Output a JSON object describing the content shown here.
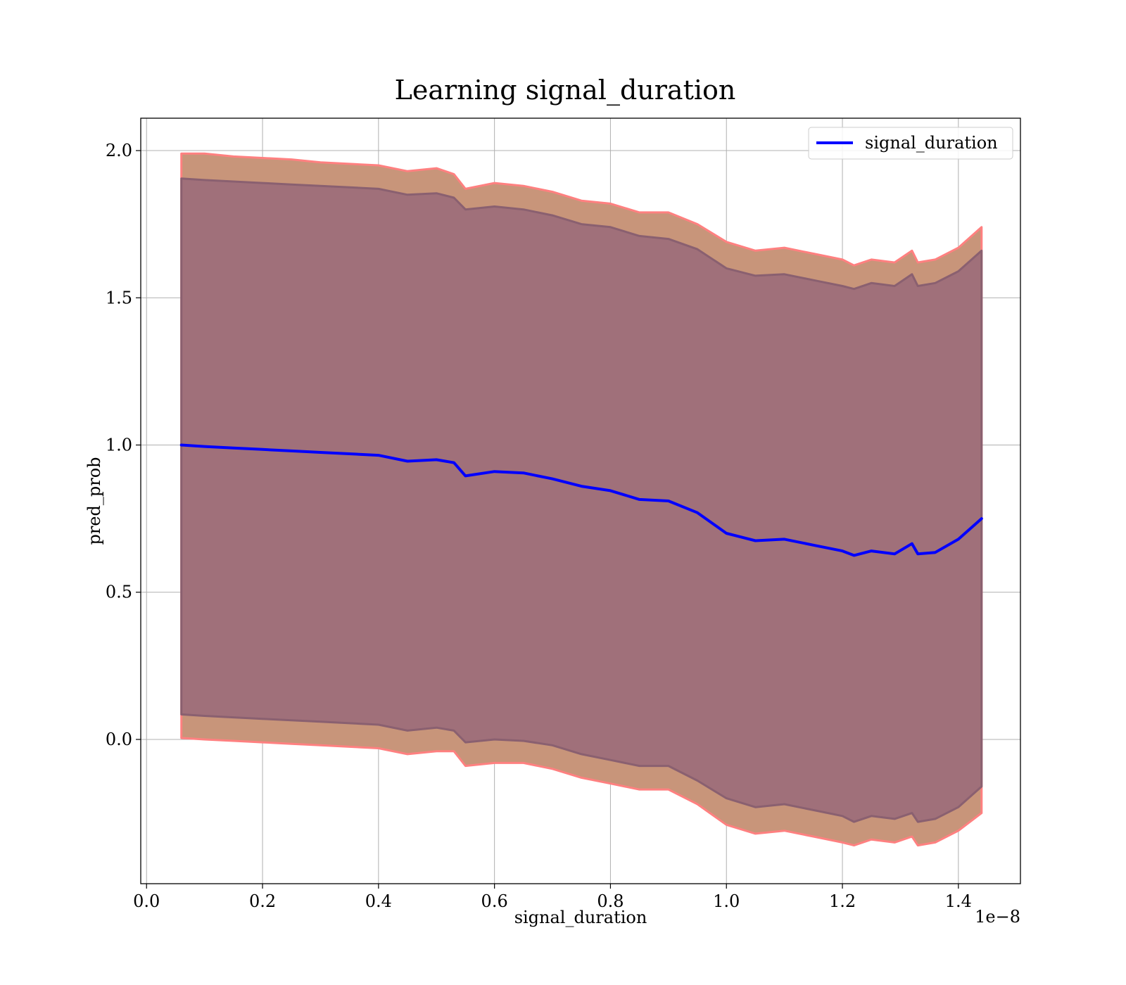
{
  "chart_data": {
    "type": "line",
    "title": "Learning signal_duration",
    "xlabel": "signal_duration",
    "ylabel": "pred_prob",
    "x_offset_text": "1e−8",
    "xlim": [
      -0.01,
      1.507
    ],
    "ylim": [
      -0.49,
      2.11
    ],
    "x_ticks": [
      0.0,
      0.2,
      0.4,
      0.6,
      0.8,
      1.0,
      1.2,
      1.4
    ],
    "x_tick_labels": [
      "0.0",
      "0.2",
      "0.4",
      "0.6",
      "0.8",
      "1.0",
      "1.2",
      "1.4"
    ],
    "y_ticks": [
      0.0,
      0.5,
      1.0,
      1.5,
      2.0
    ],
    "y_tick_labels": [
      "0.0",
      "0.5",
      "1.0",
      "1.5",
      "2.0"
    ],
    "grid": true,
    "legend_position": "top-right",
    "x": [
      0.06,
      0.1,
      0.15,
      0.2,
      0.25,
      0.3,
      0.35,
      0.4,
      0.45,
      0.5,
      0.53,
      0.55,
      0.6,
      0.65,
      0.7,
      0.75,
      0.8,
      0.85,
      0.9,
      0.95,
      1.0,
      1.05,
      1.1,
      1.15,
      1.2,
      1.22,
      1.25,
      1.29,
      1.32,
      1.33,
      1.36,
      1.4,
      1.44
    ],
    "series": [
      {
        "name": "signal_duration",
        "color": "#0000ff",
        "values": [
          1.0,
          0.995,
          0.99,
          0.985,
          0.98,
          0.975,
          0.97,
          0.965,
          0.945,
          0.95,
          0.94,
          0.895,
          0.91,
          0.905,
          0.885,
          0.86,
          0.845,
          0.815,
          0.81,
          0.77,
          0.7,
          0.675,
          0.68,
          0.66,
          0.64,
          0.625,
          0.64,
          0.63,
          0.665,
          0.63,
          0.635,
          0.68,
          0.75
        ]
      }
    ],
    "bands": [
      {
        "color": "#c8957a",
        "edge_color": "#ff8080",
        "upper": [
          1.99,
          1.99,
          1.98,
          1.975,
          1.97,
          1.96,
          1.955,
          1.95,
          1.93,
          1.94,
          1.92,
          1.87,
          1.89,
          1.88,
          1.86,
          1.83,
          1.82,
          1.79,
          1.79,
          1.75,
          1.69,
          1.66,
          1.67,
          1.65,
          1.63,
          1.61,
          1.63,
          1.62,
          1.66,
          1.62,
          1.63,
          1.67,
          1.74
        ],
        "lower": [
          0.005,
          0.0,
          -0.005,
          -0.01,
          -0.015,
          -0.02,
          -0.025,
          -0.03,
          -0.05,
          -0.04,
          -0.04,
          -0.09,
          -0.08,
          -0.08,
          -0.1,
          -0.13,
          -0.15,
          -0.17,
          -0.17,
          -0.22,
          -0.29,
          -0.32,
          -0.31,
          -0.33,
          -0.35,
          -0.36,
          -0.34,
          -0.35,
          -0.33,
          -0.36,
          -0.35,
          -0.31,
          -0.25
        ]
      },
      {
        "color": "#a0707a",
        "edge_color": "#8a6070",
        "upper": [
          1.905,
          1.9,
          1.895,
          1.89,
          1.885,
          1.88,
          1.875,
          1.87,
          1.85,
          1.855,
          1.84,
          1.8,
          1.81,
          1.8,
          1.78,
          1.75,
          1.74,
          1.71,
          1.7,
          1.665,
          1.6,
          1.575,
          1.58,
          1.56,
          1.54,
          1.53,
          1.55,
          1.54,
          1.58,
          1.54,
          1.55,
          1.59,
          1.66
        ],
        "lower": [
          0.085,
          0.08,
          0.075,
          0.07,
          0.065,
          0.06,
          0.055,
          0.05,
          0.03,
          0.04,
          0.03,
          -0.01,
          0.0,
          -0.005,
          -0.02,
          -0.05,
          -0.07,
          -0.09,
          -0.09,
          -0.14,
          -0.2,
          -0.23,
          -0.22,
          -0.24,
          -0.26,
          -0.28,
          -0.26,
          -0.27,
          -0.25,
          -0.28,
          -0.27,
          -0.23,
          -0.16
        ]
      }
    ]
  }
}
